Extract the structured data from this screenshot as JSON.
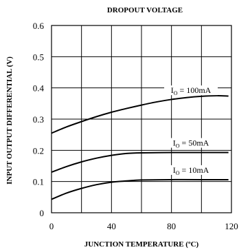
{
  "chart_data": {
    "type": "line",
    "title": "DROPOUT VOLTAGE",
    "xlabel": "JUNCTION TEMPERATURE (ºC)",
    "ylabel": "INPUT OUTPUT DIFFERENTIAL (V)",
    "xlim": [
      0,
      120
    ],
    "ylim": [
      0,
      0.6
    ],
    "x_ticks": [
      0,
      40,
      80,
      120
    ],
    "x_tick_labels": [
      "0",
      "40",
      "80",
      "120"
    ],
    "y_ticks": [
      0,
      0.1,
      0.2,
      0.3,
      0.4,
      0.5,
      0.6
    ],
    "y_tick_labels": [
      "0",
      "0.1",
      "0.2",
      "0.3",
      "0.4",
      "0.5",
      "0.6"
    ],
    "x_grid": [
      0,
      20,
      40,
      60,
      80,
      100,
      120
    ],
    "y_grid": [
      0,
      0.1,
      0.2,
      0.3,
      0.4,
      0.5,
      0.6
    ],
    "grid": true,
    "series": [
      {
        "label_main": "I",
        "label_sub": "O",
        "label_rest": " = 100mA",
        "x": [
          0,
          10,
          20,
          30,
          40,
          50,
          60,
          70,
          80,
          90,
          100,
          110,
          118
        ],
        "y": [
          0.255,
          0.275,
          0.292,
          0.308,
          0.322,
          0.334,
          0.345,
          0.355,
          0.363,
          0.369,
          0.373,
          0.375,
          0.374
        ]
      },
      {
        "label_main": "I",
        "label_sub": "O",
        "label_rest": " = 50mA",
        "x": [
          0,
          10,
          20,
          30,
          40,
          50,
          60,
          80,
          100,
          118
        ],
        "y": [
          0.13,
          0.148,
          0.163,
          0.175,
          0.184,
          0.19,
          0.192,
          0.193,
          0.193,
          0.193
        ]
      },
      {
        "label_main": "I",
        "label_sub": "O",
        "label_rest": " = 10mA",
        "x": [
          0,
          10,
          20,
          30,
          40,
          50,
          60,
          80,
          100,
          118
        ],
        "y": [
          0.043,
          0.063,
          0.078,
          0.09,
          0.098,
          0.102,
          0.105,
          0.106,
          0.106,
          0.106
        ]
      }
    ]
  }
}
